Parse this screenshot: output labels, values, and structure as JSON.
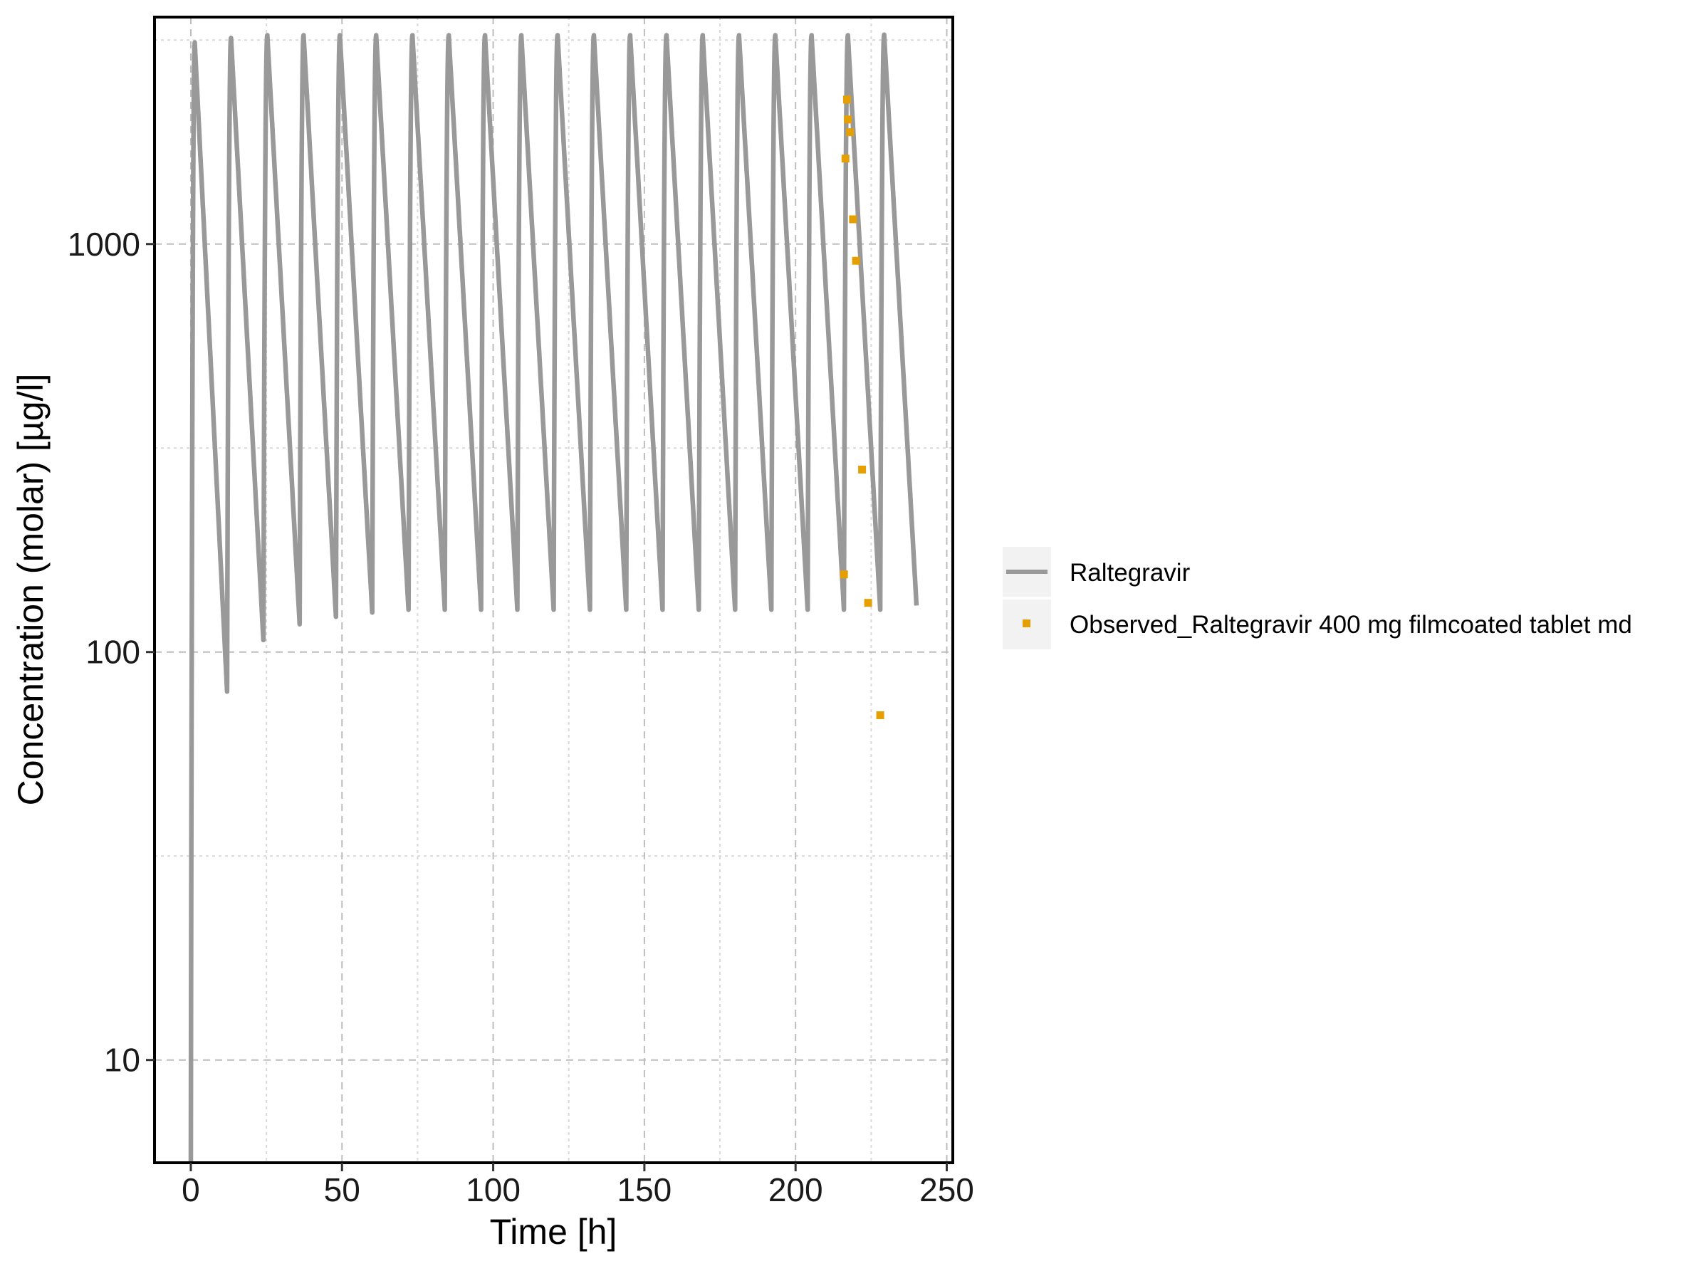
{
  "chart_data": {
    "type": "line",
    "xlabel": "Time [h]",
    "ylabel": "Concentration (molar) [µg/l]",
    "xlim": [
      -12,
      252
    ],
    "ylim": [
      5.6,
      3600
    ],
    "y_scale": "log",
    "x_ticks": [
      0,
      50,
      100,
      150,
      200,
      250
    ],
    "y_ticks": [
      10,
      100,
      1000
    ],
    "x_tick_labels": [
      "0",
      "50",
      "100",
      "150",
      "200",
      "250"
    ],
    "y_tick_labels": [
      "10",
      "100",
      "1000"
    ],
    "grid": true,
    "legend_position": "right",
    "simulation": {
      "name": "Raltegravir",
      "color": "#999999",
      "dose_interval_h": 12,
      "n_doses": 20,
      "end_time_h": 240,
      "peaks": [
        3120,
        3200,
        3250,
        3250,
        3250,
        3250,
        3250,
        3250,
        3250,
        3250,
        3250,
        3250,
        3250,
        3250,
        3250,
        3250,
        3250,
        3250,
        3250,
        3260
      ],
      "troughs": [
        80,
        107,
        117,
        122,
        125,
        127,
        127,
        127,
        127,
        127,
        127,
        127,
        127,
        127,
        127,
        127,
        127,
        127,
        127,
        130
      ]
    },
    "observed": {
      "name": "Observed_Raltegravir 400 mg filmcoated tablet md",
      "color": "#E69F00",
      "x": [
        216,
        216.5,
        217,
        217.3,
        218,
        219,
        220,
        222,
        224,
        228
      ],
      "y": [
        155,
        1620,
        2260,
        2020,
        1880,
        1150,
        910,
        280,
        132,
        70
      ]
    }
  }
}
